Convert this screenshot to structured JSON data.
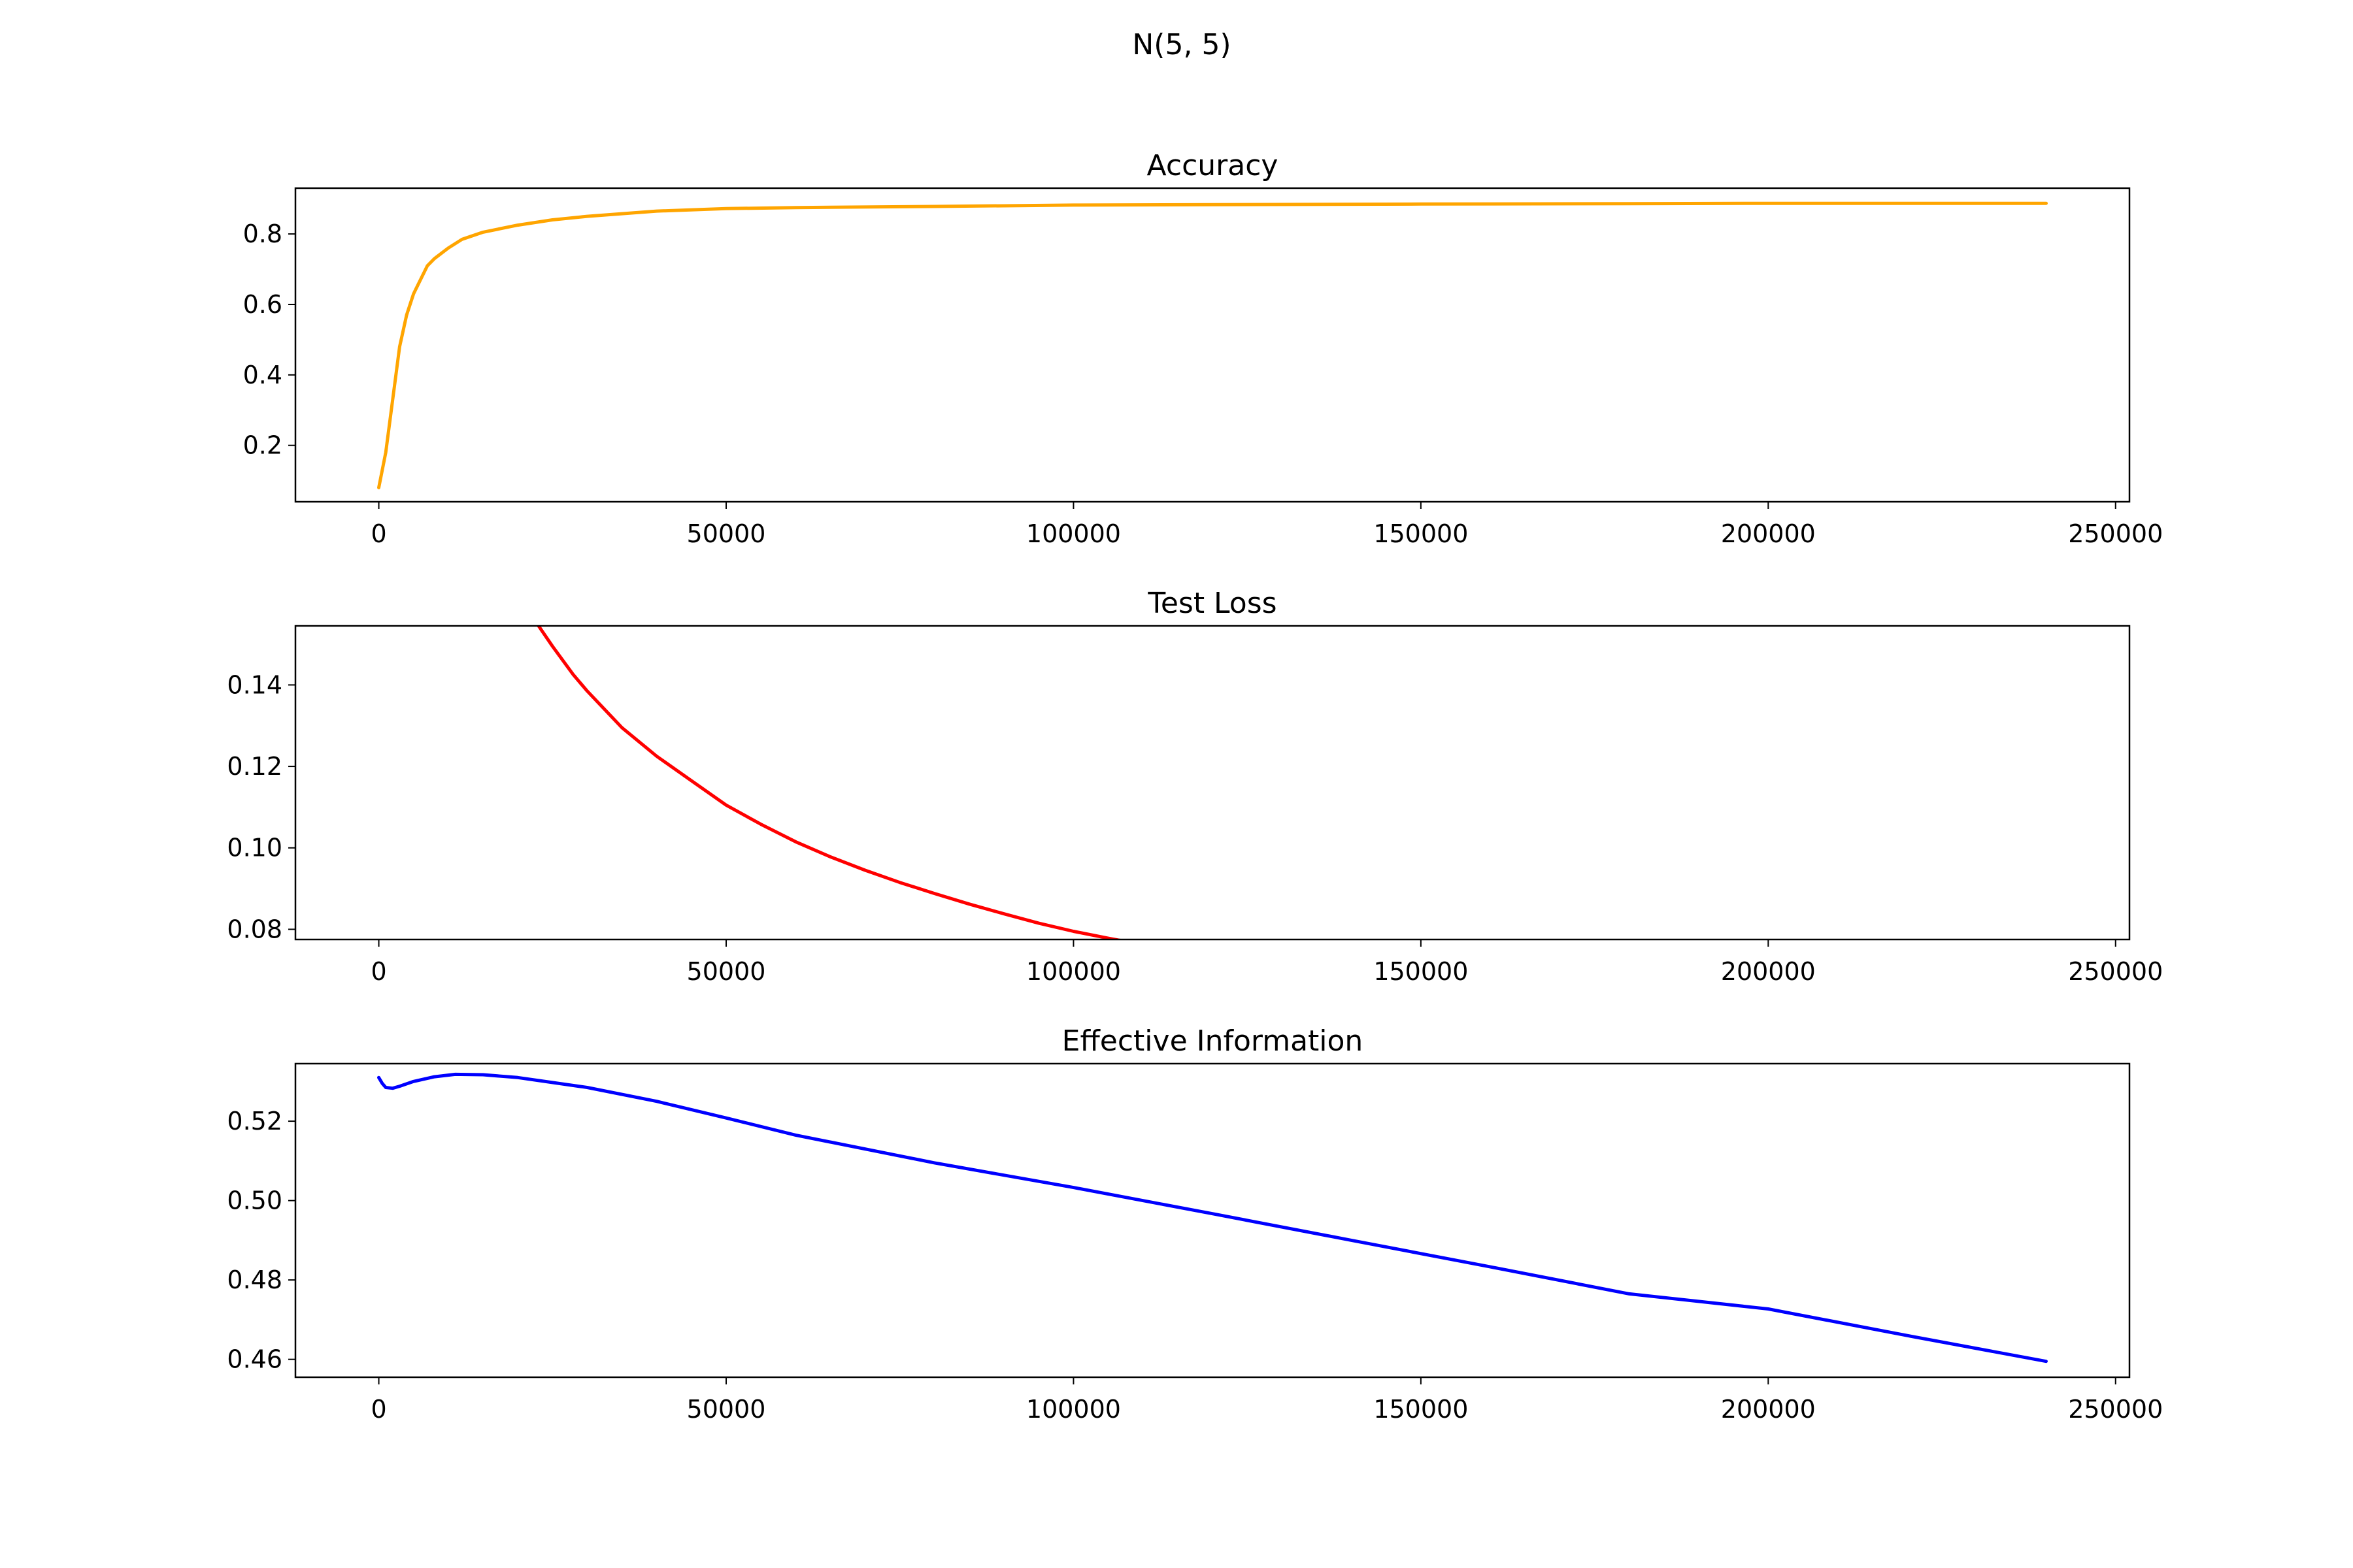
{
  "figure": {
    "suptitle": "N(5, 5)"
  },
  "chart_data": [
    {
      "type": "line",
      "title": "Accuracy",
      "xlabel": "",
      "ylabel": "",
      "color": "#ffa500",
      "xlim": [
        -12000,
        252000
      ],
      "ylim": [
        0.04,
        0.93
      ],
      "xticks": [
        0,
        50000,
        100000,
        150000,
        200000,
        250000
      ],
      "xtick_labels": [
        "0",
        "50000",
        "100000",
        "150000",
        "200000",
        "250000"
      ],
      "yticks": [
        0.2,
        0.4,
        0.6,
        0.8
      ],
      "ytick_labels": [
        "0.2",
        "0.4",
        "0.6",
        "0.8"
      ],
      "grid": false,
      "series": [
        {
          "x": [
            0,
            1000,
            2000,
            3000,
            4000,
            5000,
            6000,
            7000,
            8000,
            10000,
            12000,
            15000,
            20000,
            25000,
            30000,
            40000,
            50000,
            60000,
            80000,
            100000,
            120000,
            150000,
            180000,
            200000,
            220000,
            240000
          ],
          "y": [
            0.08,
            0.18,
            0.33,
            0.48,
            0.57,
            0.63,
            0.67,
            0.71,
            0.73,
            0.76,
            0.785,
            0.805,
            0.825,
            0.84,
            0.85,
            0.865,
            0.872,
            0.875,
            0.878,
            0.882,
            0.883,
            0.885,
            0.886,
            0.887,
            0.887,
            0.887
          ]
        }
      ]
    },
    {
      "type": "line",
      "title": "Test Loss",
      "xlabel": "",
      "ylabel": "",
      "color": "#ff0000",
      "xlim": [
        -12000,
        252000
      ],
      "ylim": [
        0.0775,
        0.1545
      ],
      "xticks": [
        0,
        50000,
        100000,
        150000,
        200000,
        250000
      ],
      "xtick_labels": [
        "0",
        "50000",
        "100000",
        "150000",
        "200000",
        "250000"
      ],
      "yticks": [
        0.08,
        0.1,
        0.12,
        0.14
      ],
      "ytick_labels": [
        "0.08",
        "0.10",
        "0.12",
        "0.14"
      ],
      "grid": false,
      "series": [
        {
          "x": [
            23000,
            25000,
            28000,
            30000,
            35000,
            40000,
            45000,
            50000,
            55000,
            60000,
            65000,
            70000,
            75000,
            80000,
            85000,
            90000,
            95000,
            100000,
            105000,
            107000
          ],
          "y": [
            0.1545,
            0.1495,
            0.1425,
            0.1385,
            0.1295,
            0.1225,
            0.1165,
            0.1105,
            0.1058,
            0.1015,
            0.0978,
            0.0945,
            0.0915,
            0.0888,
            0.0862,
            0.0838,
            0.0815,
            0.0795,
            0.0778,
            0.0772
          ]
        }
      ]
    },
    {
      "type": "line",
      "title": "Effective Information",
      "xlabel": "",
      "ylabel": "",
      "color": "#0000ff",
      "xlim": [
        -12000,
        252000
      ],
      "ylim": [
        0.4555,
        0.5345
      ],
      "xticks": [
        0,
        50000,
        100000,
        150000,
        200000,
        250000
      ],
      "xtick_labels": [
        "0",
        "50000",
        "100000",
        "150000",
        "200000",
        "250000"
      ],
      "yticks": [
        0.46,
        0.48,
        0.5,
        0.52
      ],
      "ytick_labels": [
        "0.46",
        "0.48",
        "0.50",
        "0.52"
      ],
      "grid": false,
      "series": [
        {
          "x": [
            0,
            500,
            1000,
            2000,
            3000,
            5000,
            8000,
            11000,
            15000,
            20000,
            30000,
            40000,
            50000,
            60000,
            80000,
            100000,
            120000,
            140000,
            160000,
            180000,
            200000,
            220000,
            240000
          ],
          "y": [
            0.531,
            0.5295,
            0.5285,
            0.5283,
            0.5288,
            0.53,
            0.5312,
            0.5318,
            0.5317,
            0.531,
            0.5285,
            0.525,
            0.5208,
            0.5165,
            0.5095,
            0.5033,
            0.4967,
            0.49,
            0.4833,
            0.4765,
            0.4727,
            0.466,
            0.4595
          ]
        }
      ]
    }
  ]
}
